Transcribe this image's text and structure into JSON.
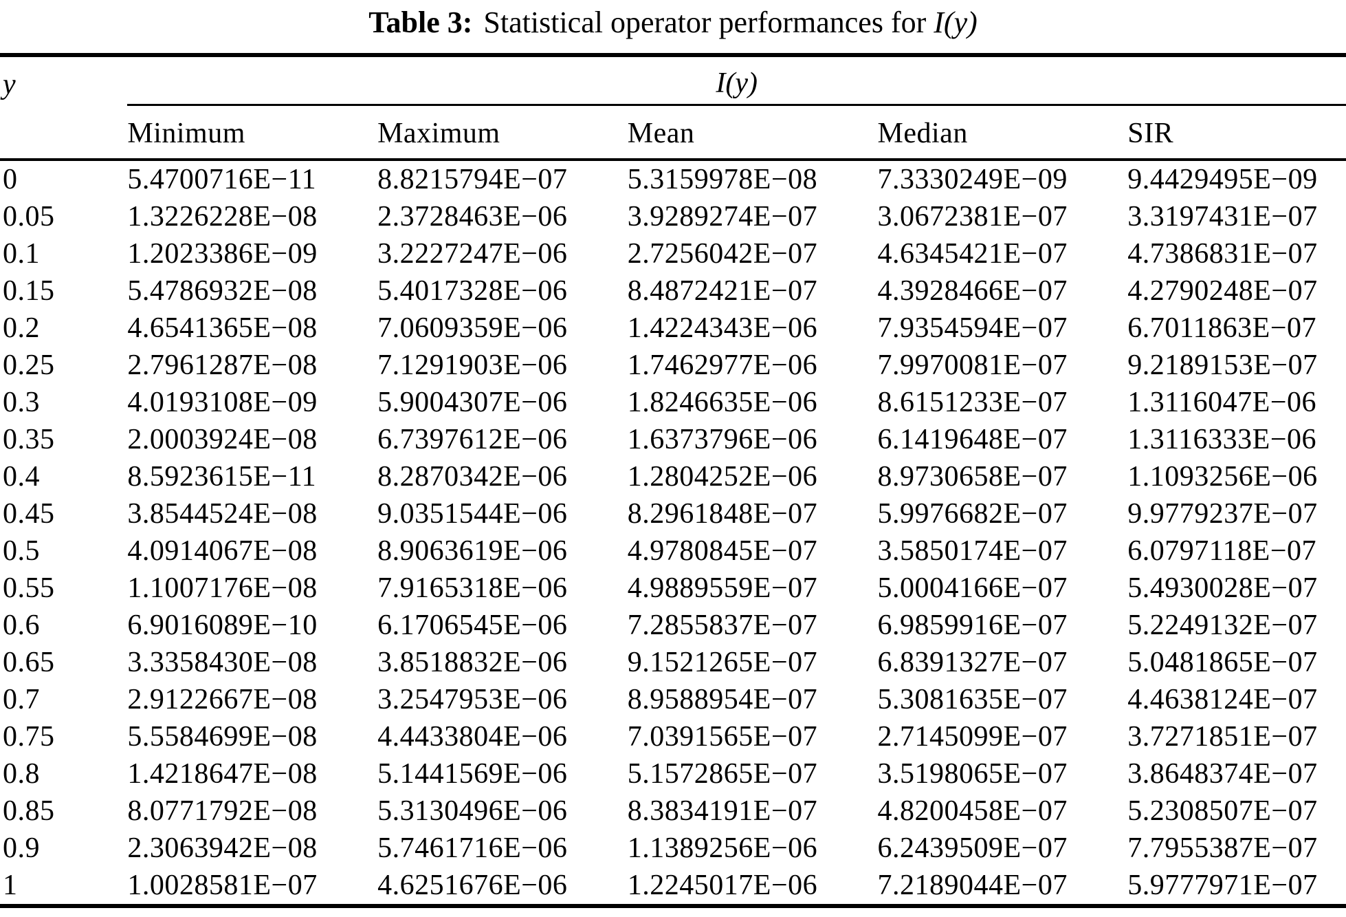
{
  "page": {
    "background": "#ffffff",
    "text_color": "#000000"
  },
  "title": {
    "label": "Table 3:",
    "text": "Statistical operator performances for",
    "math": "I(y)"
  },
  "table": {
    "row_axis_label": "y",
    "group_header": "I(y)",
    "columns": [
      "Minimum",
      "Maximum",
      "Mean",
      "Median",
      "SIR"
    ],
    "rows": [
      {
        "y": "0",
        "values": [
          "5.4700716E−11",
          "8.8215794E−07",
          "5.3159978E−08",
          "7.3330249E−09",
          "9.4429495E−09"
        ]
      },
      {
        "y": "0.05",
        "values": [
          "1.3226228E−08",
          "2.3728463E−06",
          "3.9289274E−07",
          "3.0672381E−07",
          "3.3197431E−07"
        ]
      },
      {
        "y": "0.1",
        "values": [
          "1.2023386E−09",
          "3.2227247E−06",
          "2.7256042E−07",
          "4.6345421E−07",
          "4.7386831E−07"
        ]
      },
      {
        "y": "0.15",
        "values": [
          "5.4786932E−08",
          "5.4017328E−06",
          "8.4872421E−07",
          "4.3928466E−07",
          "4.2790248E−07"
        ]
      },
      {
        "y": "0.2",
        "values": [
          "4.6541365E−08",
          "7.0609359E−06",
          "1.4224343E−06",
          "7.9354594E−07",
          "6.7011863E−07"
        ]
      },
      {
        "y": "0.25",
        "values": [
          "2.7961287E−08",
          "7.1291903E−06",
          "1.7462977E−06",
          "7.9970081E−07",
          "9.2189153E−07"
        ]
      },
      {
        "y": "0.3",
        "values": [
          "4.0193108E−09",
          "5.9004307E−06",
          "1.8246635E−06",
          "8.6151233E−07",
          "1.3116047E−06"
        ]
      },
      {
        "y": "0.35",
        "values": [
          "2.0003924E−08",
          "6.7397612E−06",
          "1.6373796E−06",
          "6.1419648E−07",
          "1.3116333E−06"
        ]
      },
      {
        "y": "0.4",
        "values": [
          "8.5923615E−11",
          "8.2870342E−06",
          "1.2804252E−06",
          "8.9730658E−07",
          "1.1093256E−06"
        ]
      },
      {
        "y": "0.45",
        "values": [
          "3.8544524E−08",
          "9.0351544E−06",
          "8.2961848E−07",
          "5.9976682E−07",
          "9.9779237E−07"
        ]
      },
      {
        "y": "0.5",
        "values": [
          "4.0914067E−08",
          "8.9063619E−06",
          "4.9780845E−07",
          "3.5850174E−07",
          "6.0797118E−07"
        ]
      },
      {
        "y": "0.55",
        "values": [
          "1.1007176E−08",
          "7.9165318E−06",
          "4.9889559E−07",
          "5.0004166E−07",
          "5.4930028E−07"
        ]
      },
      {
        "y": "0.6",
        "values": [
          "6.9016089E−10",
          "6.1706545E−06",
          "7.2855837E−07",
          "6.9859916E−07",
          "5.2249132E−07"
        ]
      },
      {
        "y": "0.65",
        "values": [
          "3.3358430E−08",
          "3.8518832E−06",
          "9.1521265E−07",
          "6.8391327E−07",
          "5.0481865E−07"
        ]
      },
      {
        "y": "0.7",
        "values": [
          "2.9122667E−08",
          "3.2547953E−06",
          "8.9588954E−07",
          "5.3081635E−07",
          "4.4638124E−07"
        ]
      },
      {
        "y": "0.75",
        "values": [
          "5.5584699E−08",
          "4.4433804E−06",
          "7.0391565E−07",
          "2.7145099E−07",
          "3.7271851E−07"
        ]
      },
      {
        "y": "0.8",
        "values": [
          "1.4218647E−08",
          "5.1441569E−06",
          "5.1572865E−07",
          "3.5198065E−07",
          "3.8648374E−07"
        ]
      },
      {
        "y": "0.85",
        "values": [
          "8.0771792E−08",
          "5.3130496E−06",
          "8.3834191E−07",
          "4.8200458E−07",
          "5.2308507E−07"
        ]
      },
      {
        "y": "0.9",
        "values": [
          "2.3063942E−08",
          "5.7461716E−06",
          "1.1389256E−06",
          "6.2439509E−07",
          "7.7955387E−07"
        ]
      },
      {
        "y": "1",
        "values": [
          "1.0028581E−07",
          "4.6251676E−06",
          "1.2245017E−06",
          "7.2189044E−07",
          "5.9777971E−07"
        ]
      }
    ]
  }
}
